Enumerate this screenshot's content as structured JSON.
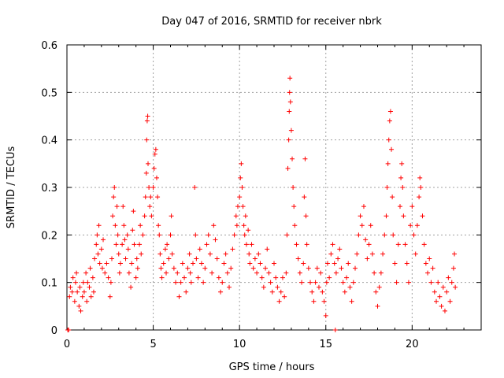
{
  "chart_data": {
    "type": "scatter",
    "title": "Day 047 of 2016, SRMTID for receiver nbrk",
    "xlabel": "GPS time / hours",
    "ylabel": "SRMTID / TECUs",
    "xlim": [
      0,
      24
    ],
    "ylim": [
      0,
      0.6
    ],
    "x_ticks": [
      0,
      5,
      10,
      15,
      20
    ],
    "y_ticks": [
      0,
      0.1,
      0.2,
      0.3,
      0.4,
      0.5,
      0.6
    ],
    "x_tick_labels": [
      "0",
      "5",
      "10",
      "15",
      "20"
    ],
    "y_tick_labels": [
      "0",
      "0.1",
      "0.2",
      "0.3",
      "0.4",
      "0.5",
      "0.6"
    ],
    "grid": true,
    "marker": "+",
    "series": [
      {
        "name": "SRMTID",
        "color": "#ff0000",
        "points": [
          [
            0.05,
            0.0
          ],
          [
            0.1,
            0.0
          ],
          [
            0.15,
            0.07
          ],
          [
            0.2,
            0.09
          ],
          [
            0.3,
            0.08
          ],
          [
            0.35,
            0.11
          ],
          [
            0.45,
            0.06
          ],
          [
            0.5,
            0.1
          ],
          [
            0.55,
            0.12
          ],
          [
            0.6,
            0.08
          ],
          [
            0.7,
            0.05
          ],
          [
            0.75,
            0.09
          ],
          [
            0.8,
            0.04
          ],
          [
            0.9,
            0.07
          ],
          [
            0.95,
            0.1
          ],
          [
            1.0,
            0.08
          ],
          [
            1.1,
            0.12
          ],
          [
            1.15,
            0.06
          ],
          [
            1.2,
            0.1
          ],
          [
            1.3,
            0.09
          ],
          [
            1.35,
            0.13
          ],
          [
            1.4,
            0.07
          ],
          [
            1.5,
            0.11
          ],
          [
            1.55,
            0.08
          ],
          [
            1.6,
            0.15
          ],
          [
            1.7,
            0.18
          ],
          [
            1.75,
            0.2
          ],
          [
            1.8,
            0.16
          ],
          [
            1.85,
            0.22
          ],
          [
            1.9,
            0.14
          ],
          [
            2.0,
            0.17
          ],
          [
            2.05,
            0.13
          ],
          [
            2.1,
            0.19
          ],
          [
            2.2,
            0.12
          ],
          [
            2.3,
            0.14
          ],
          [
            2.4,
            0.11
          ],
          [
            2.5,
            0.07
          ],
          [
            2.55,
            0.1
          ],
          [
            2.6,
            0.15
          ],
          [
            2.65,
            0.24
          ],
          [
            2.7,
            0.28
          ],
          [
            2.75,
            0.3
          ],
          [
            2.8,
            0.22
          ],
          [
            2.85,
            0.18
          ],
          [
            2.9,
            0.26
          ],
          [
            2.95,
            0.2
          ],
          [
            3.0,
            0.16
          ],
          [
            3.05,
            0.12
          ],
          [
            3.1,
            0.14
          ],
          [
            3.2,
            0.18
          ],
          [
            3.25,
            0.26
          ],
          [
            3.3,
            0.22
          ],
          [
            3.35,
            0.19
          ],
          [
            3.4,
            0.15
          ],
          [
            3.5,
            0.2
          ],
          [
            3.55,
            0.17
          ],
          [
            3.6,
            0.12
          ],
          [
            3.7,
            0.09
          ],
          [
            3.75,
            0.14
          ],
          [
            3.8,
            0.21
          ],
          [
            3.85,
            0.25
          ],
          [
            3.9,
            0.18
          ],
          [
            4.0,
            0.11
          ],
          [
            4.05,
            0.15
          ],
          [
            4.1,
            0.13
          ],
          [
            4.2,
            0.18
          ],
          [
            4.25,
            0.22
          ],
          [
            4.3,
            0.16
          ],
          [
            4.4,
            0.2
          ],
          [
            4.5,
            0.24
          ],
          [
            4.55,
            0.28
          ],
          [
            4.6,
            0.33
          ],
          [
            4.62,
            0.4
          ],
          [
            4.65,
            0.44
          ],
          [
            4.68,
            0.45
          ],
          [
            4.7,
            0.35
          ],
          [
            4.75,
            0.3
          ],
          [
            4.8,
            0.26
          ],
          [
            4.85,
            0.28
          ],
          [
            4.9,
            0.24
          ],
          [
            5.0,
            0.3
          ],
          [
            5.05,
            0.34
          ],
          [
            5.1,
            0.37
          ],
          [
            5.15,
            0.38
          ],
          [
            5.2,
            0.32
          ],
          [
            5.25,
            0.28
          ],
          [
            5.3,
            0.22
          ],
          [
            5.35,
            0.2
          ],
          [
            5.4,
            0.16
          ],
          [
            5.45,
            0.13
          ],
          [
            5.5,
            0.11
          ],
          [
            5.6,
            0.14
          ],
          [
            5.7,
            0.17
          ],
          [
            5.75,
            0.12
          ],
          [
            5.8,
            0.18
          ],
          [
            5.9,
            0.15
          ],
          [
            6.0,
            0.2
          ],
          [
            6.05,
            0.24
          ],
          [
            6.1,
            0.16
          ],
          [
            6.2,
            0.13
          ],
          [
            6.3,
            0.1
          ],
          [
            6.4,
            0.12
          ],
          [
            6.5,
            0.07
          ],
          [
            6.6,
            0.1
          ],
          [
            6.7,
            0.14
          ],
          [
            6.8,
            0.11
          ],
          [
            6.9,
            0.08
          ],
          [
            7.0,
            0.13
          ],
          [
            7.1,
            0.16
          ],
          [
            7.15,
            0.12
          ],
          [
            7.2,
            0.1
          ],
          [
            7.3,
            0.14
          ],
          [
            7.4,
            0.3
          ],
          [
            7.45,
            0.2
          ],
          [
            7.5,
            0.15
          ],
          [
            7.6,
            0.11
          ],
          [
            7.7,
            0.17
          ],
          [
            7.8,
            0.14
          ],
          [
            7.9,
            0.1
          ],
          [
            8.0,
            0.13
          ],
          [
            8.1,
            0.18
          ],
          [
            8.2,
            0.2
          ],
          [
            8.3,
            0.16
          ],
          [
            8.4,
            0.12
          ],
          [
            8.5,
            0.22
          ],
          [
            8.6,
            0.19
          ],
          [
            8.7,
            0.15
          ],
          [
            8.8,
            0.11
          ],
          [
            8.9,
            0.08
          ],
          [
            9.0,
            0.1
          ],
          [
            9.1,
            0.14
          ],
          [
            9.2,
            0.16
          ],
          [
            9.3,
            0.12
          ],
          [
            9.4,
            0.09
          ],
          [
            9.5,
            0.13
          ],
          [
            9.6,
            0.17
          ],
          [
            9.7,
            0.2
          ],
          [
            9.8,
            0.24
          ],
          [
            9.85,
            0.22
          ],
          [
            9.9,
            0.26
          ],
          [
            10.0,
            0.28
          ],
          [
            10.05,
            0.32
          ],
          [
            10.1,
            0.35
          ],
          [
            10.15,
            0.3
          ],
          [
            10.2,
            0.26
          ],
          [
            10.25,
            0.22
          ],
          [
            10.3,
            0.2
          ],
          [
            10.35,
            0.24
          ],
          [
            10.4,
            0.18
          ],
          [
            10.5,
            0.21
          ],
          [
            10.55,
            0.16
          ],
          [
            10.6,
            0.14
          ],
          [
            10.7,
            0.18
          ],
          [
            10.8,
            0.13
          ],
          [
            10.9,
            0.15
          ],
          [
            11.0,
            0.12
          ],
          [
            11.1,
            0.16
          ],
          [
            11.2,
            0.14
          ],
          [
            11.3,
            0.11
          ],
          [
            11.4,
            0.09
          ],
          [
            11.5,
            0.13
          ],
          [
            11.6,
            0.17
          ],
          [
            11.7,
            0.12
          ],
          [
            11.8,
            0.1
          ],
          [
            11.9,
            0.08
          ],
          [
            12.0,
            0.14
          ],
          [
            12.1,
            0.11
          ],
          [
            12.2,
            0.09
          ],
          [
            12.3,
            0.06
          ],
          [
            12.4,
            0.08
          ],
          [
            12.5,
            0.11
          ],
          [
            12.6,
            0.07
          ],
          [
            12.7,
            0.12
          ],
          [
            12.75,
            0.2
          ],
          [
            12.8,
            0.34
          ],
          [
            12.85,
            0.4
          ],
          [
            12.88,
            0.46
          ],
          [
            12.9,
            0.5
          ],
          [
            12.92,
            0.53
          ],
          [
            12.95,
            0.48
          ],
          [
            13.0,
            0.42
          ],
          [
            13.05,
            0.36
          ],
          [
            13.1,
            0.3
          ],
          [
            13.15,
            0.26
          ],
          [
            13.2,
            0.22
          ],
          [
            13.3,
            0.18
          ],
          [
            13.4,
            0.15
          ],
          [
            13.5,
            0.12
          ],
          [
            13.6,
            0.1
          ],
          [
            13.7,
            0.14
          ],
          [
            13.75,
            0.28
          ],
          [
            13.8,
            0.36
          ],
          [
            13.85,
            0.24
          ],
          [
            13.9,
            0.18
          ],
          [
            14.0,
            0.13
          ],
          [
            14.1,
            0.1
          ],
          [
            14.2,
            0.08
          ],
          [
            14.3,
            0.06
          ],
          [
            14.4,
            0.1
          ],
          [
            14.5,
            0.13
          ],
          [
            14.6,
            0.09
          ],
          [
            14.7,
            0.12
          ],
          [
            14.8,
            0.08
          ],
          [
            14.9,
            0.06
          ],
          [
            15.0,
            0.03
          ],
          [
            15.05,
            0.1
          ],
          [
            15.1,
            0.14
          ],
          [
            15.2,
            0.11
          ],
          [
            15.3,
            0.16
          ],
          [
            15.4,
            0.18
          ],
          [
            15.5,
            0.14
          ],
          [
            15.55,
            0.0
          ],
          [
            15.6,
            0.12
          ],
          [
            15.7,
            0.15
          ],
          [
            15.8,
            0.17
          ],
          [
            15.9,
            0.13
          ],
          [
            16.0,
            0.1
          ],
          [
            16.1,
            0.08
          ],
          [
            16.2,
            0.11
          ],
          [
            16.3,
            0.14
          ],
          [
            16.4,
            0.09
          ],
          [
            16.5,
            0.06
          ],
          [
            16.6,
            0.1
          ],
          [
            16.7,
            0.13
          ],
          [
            16.8,
            0.16
          ],
          [
            16.9,
            0.2
          ],
          [
            17.0,
            0.24
          ],
          [
            17.1,
            0.22
          ],
          [
            17.2,
            0.26
          ],
          [
            17.3,
            0.19
          ],
          [
            17.4,
            0.15
          ],
          [
            17.5,
            0.18
          ],
          [
            17.6,
            0.22
          ],
          [
            17.7,
            0.16
          ],
          [
            17.8,
            0.12
          ],
          [
            17.9,
            0.08
          ],
          [
            18.0,
            0.05
          ],
          [
            18.1,
            0.09
          ],
          [
            18.2,
            0.12
          ],
          [
            18.3,
            0.16
          ],
          [
            18.4,
            0.2
          ],
          [
            18.5,
            0.24
          ],
          [
            18.55,
            0.3
          ],
          [
            18.6,
            0.35
          ],
          [
            18.65,
            0.4
          ],
          [
            18.7,
            0.44
          ],
          [
            18.75,
            0.46
          ],
          [
            18.8,
            0.38
          ],
          [
            18.85,
            0.28
          ],
          [
            18.9,
            0.2
          ],
          [
            19.0,
            0.14
          ],
          [
            19.1,
            0.1
          ],
          [
            19.2,
            0.18
          ],
          [
            19.3,
            0.26
          ],
          [
            19.35,
            0.32
          ],
          [
            19.4,
            0.35
          ],
          [
            19.45,
            0.3
          ],
          [
            19.5,
            0.24
          ],
          [
            19.6,
            0.18
          ],
          [
            19.7,
            0.14
          ],
          [
            19.8,
            0.1
          ],
          [
            19.9,
            0.22
          ],
          [
            20.0,
            0.26
          ],
          [
            20.1,
            0.2
          ],
          [
            20.2,
            0.16
          ],
          [
            20.3,
            0.22
          ],
          [
            20.4,
            0.28
          ],
          [
            20.45,
            0.32
          ],
          [
            20.5,
            0.3
          ],
          [
            20.6,
            0.24
          ],
          [
            20.7,
            0.18
          ],
          [
            20.8,
            0.14
          ],
          [
            20.9,
            0.12
          ],
          [
            21.0,
            0.15
          ],
          [
            21.1,
            0.1
          ],
          [
            21.2,
            0.13
          ],
          [
            21.3,
            0.08
          ],
          [
            21.4,
            0.06
          ],
          [
            21.5,
            0.1
          ],
          [
            21.6,
            0.07
          ],
          [
            21.7,
            0.05
          ],
          [
            21.8,
            0.09
          ],
          [
            21.9,
            0.04
          ],
          [
            22.0,
            0.08
          ],
          [
            22.1,
            0.11
          ],
          [
            22.2,
            0.06
          ],
          [
            22.3,
            0.1
          ],
          [
            22.4,
            0.13
          ],
          [
            22.45,
            0.16
          ],
          [
            22.5,
            0.09
          ]
        ]
      }
    ]
  }
}
